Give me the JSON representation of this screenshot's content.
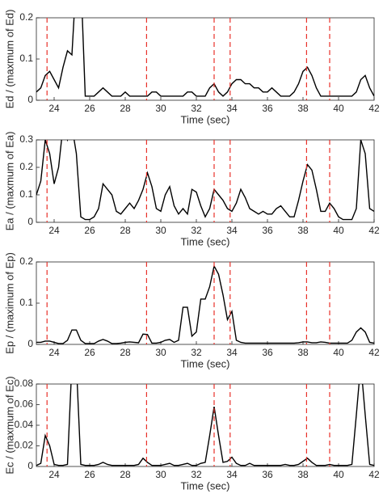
{
  "chart_data": [
    {
      "type": "line",
      "ylabel": "Ed / (maxmum of Ed)",
      "xlabel": "Time (sec)",
      "color": "#000000",
      "vline_color": "#e8312a",
      "xlim": [
        23,
        42
      ],
      "xticks": [
        24,
        26,
        28,
        30,
        32,
        34,
        36,
        38,
        40,
        42
      ],
      "ylim": [
        0,
        0.2
      ],
      "yticks": [
        0,
        0.1,
        0.2
      ],
      "vlines": [
        23.6,
        29.2,
        33.0,
        33.9,
        38.2,
        39.5
      ],
      "x": [
        23,
        23.25,
        23.5,
        23.75,
        24,
        24.25,
        24.5,
        24.75,
        25,
        25.25,
        25.5,
        25.75,
        26,
        26.25,
        26.5,
        26.75,
        27,
        27.25,
        27.5,
        27.75,
        28,
        28.25,
        28.5,
        28.75,
        29,
        29.25,
        29.5,
        29.75,
        30,
        30.25,
        30.5,
        30.75,
        31,
        31.25,
        31.5,
        31.75,
        32,
        32.25,
        32.5,
        32.75,
        33,
        33.25,
        33.5,
        33.75,
        34,
        34.25,
        34.5,
        34.75,
        35,
        35.25,
        35.5,
        35.75,
        36,
        36.25,
        36.5,
        36.75,
        37,
        37.25,
        37.5,
        37.75,
        38,
        38.25,
        38.5,
        38.75,
        39,
        39.25,
        39.5,
        39.75,
        40,
        40.25,
        40.5,
        40.75,
        41,
        41.25,
        41.5,
        41.75,
        42
      ],
      "values": [
        0.02,
        0.03,
        0.06,
        0.07,
        0.05,
        0.03,
        0.08,
        0.12,
        0.11,
        0.3,
        0.3,
        0.01,
        0.01,
        0.01,
        0.02,
        0.03,
        0.02,
        0.01,
        0.01,
        0.01,
        0.02,
        0.01,
        0.01,
        0.01,
        0.01,
        0.01,
        0.02,
        0.02,
        0.01,
        0.01,
        0.01,
        0.01,
        0.01,
        0.01,
        0.02,
        0.02,
        0.01,
        0.01,
        0.01,
        0.03,
        0.04,
        0.02,
        0.01,
        0.02,
        0.04,
        0.05,
        0.05,
        0.04,
        0.04,
        0.03,
        0.03,
        0.02,
        0.02,
        0.03,
        0.02,
        0.01,
        0.01,
        0.01,
        0.02,
        0.04,
        0.07,
        0.08,
        0.06,
        0.03,
        0.01,
        0.01,
        0.01,
        0.01,
        0.01,
        0.01,
        0.01,
        0.01,
        0.02,
        0.05,
        0.06,
        0.03,
        0.01
      ]
    },
    {
      "type": "line",
      "ylabel": "Ea / (maxmum of Ea)",
      "xlabel": "Time (sec)",
      "color": "#000000",
      "vline_color": "#e8312a",
      "xlim": [
        23,
        42
      ],
      "xticks": [
        24,
        26,
        28,
        30,
        32,
        34,
        36,
        38,
        40,
        42
      ],
      "ylim": [
        0,
        0.3
      ],
      "yticks": [
        0,
        0.1,
        0.2,
        0.3
      ],
      "vlines": [
        23.6,
        29.2,
        33.0,
        33.9,
        38.2,
        39.5
      ],
      "x": [
        23,
        23.25,
        23.5,
        23.75,
        24,
        24.25,
        24.5,
        24.75,
        25,
        25.25,
        25.5,
        25.75,
        26,
        26.25,
        26.5,
        26.75,
        27,
        27.25,
        27.5,
        27.75,
        28,
        28.25,
        28.5,
        28.75,
        29,
        29.25,
        29.5,
        29.75,
        30,
        30.25,
        30.5,
        30.75,
        31,
        31.25,
        31.5,
        31.75,
        32,
        32.25,
        32.5,
        32.75,
        33,
        33.25,
        33.5,
        33.75,
        34,
        34.25,
        34.5,
        34.75,
        35,
        35.25,
        35.5,
        35.75,
        36,
        36.25,
        36.5,
        36.75,
        37,
        37.25,
        37.5,
        37.75,
        38,
        38.25,
        38.5,
        38.75,
        39,
        39.25,
        39.5,
        39.75,
        40,
        40.25,
        40.5,
        40.75,
        41,
        41.25,
        41.5,
        41.75,
        42
      ],
      "values": [
        0.1,
        0.15,
        0.3,
        0.25,
        0.14,
        0.2,
        0.35,
        0.3,
        0.35,
        0.25,
        0.02,
        0.01,
        0.01,
        0.02,
        0.05,
        0.14,
        0.12,
        0.1,
        0.04,
        0.03,
        0.05,
        0.07,
        0.05,
        0.08,
        0.12,
        0.18,
        0.13,
        0.05,
        0.04,
        0.1,
        0.13,
        0.06,
        0.03,
        0.05,
        0.03,
        0.12,
        0.11,
        0.06,
        0.02,
        0.05,
        0.12,
        0.1,
        0.08,
        0.05,
        0.04,
        0.07,
        0.12,
        0.09,
        0.05,
        0.04,
        0.03,
        0.04,
        0.03,
        0.03,
        0.05,
        0.06,
        0.04,
        0.02,
        0.02,
        0.08,
        0.15,
        0.21,
        0.19,
        0.12,
        0.04,
        0.04,
        0.07,
        0.05,
        0.02,
        0.01,
        0.01,
        0.01,
        0.05,
        0.3,
        0.25,
        0.05,
        0.04
      ]
    },
    {
      "type": "line",
      "ylabel": "Ep / (maximum of Ep)",
      "xlabel": "Time (sec)",
      "color": "#000000",
      "vline_color": "#e8312a",
      "xlim": [
        23,
        42
      ],
      "xticks": [
        24,
        26,
        28,
        30,
        32,
        34,
        36,
        38,
        40,
        42
      ],
      "ylim": [
        0,
        0.2
      ],
      "yticks": [
        0,
        0.1,
        0.2
      ],
      "vlines": [
        23.6,
        29.2,
        33.0,
        33.9,
        38.2,
        39.5
      ],
      "x": [
        23,
        23.25,
        23.5,
        23.75,
        24,
        24.25,
        24.5,
        24.75,
        25,
        25.25,
        25.5,
        25.75,
        26,
        26.25,
        26.5,
        26.75,
        27,
        27.25,
        27.5,
        27.75,
        28,
        28.25,
        28.5,
        28.75,
        29,
        29.25,
        29.5,
        29.75,
        30,
        30.25,
        30.5,
        30.75,
        31,
        31.25,
        31.5,
        31.75,
        32,
        32.25,
        32.5,
        32.75,
        33,
        33.25,
        33.5,
        33.75,
        34,
        34.25,
        34.5,
        34.75,
        35,
        35.25,
        35.5,
        35.75,
        36,
        36.25,
        36.5,
        36.75,
        37,
        37.25,
        37.5,
        37.75,
        38,
        38.25,
        38.5,
        38.75,
        39,
        39.25,
        39.5,
        39.75,
        40,
        40.25,
        40.5,
        40.75,
        41,
        41.25,
        41.5,
        41.75,
        42
      ],
      "values": [
        0.005,
        0.005,
        0.008,
        0.008,
        0.005,
        0.002,
        0.002,
        0.01,
        0.035,
        0.035,
        0.01,
        0.002,
        0.002,
        0.002,
        0.008,
        0.012,
        0.008,
        0.002,
        0.002,
        0.003,
        0.005,
        0.006,
        0.005,
        0.004,
        0.025,
        0.024,
        0.003,
        0.003,
        0.005,
        0.01,
        0.012,
        0.005,
        0.01,
        0.09,
        0.09,
        0.02,
        0.03,
        0.11,
        0.11,
        0.14,
        0.19,
        0.17,
        0.12,
        0.06,
        0.08,
        0.01,
        0.005,
        0.003,
        0.003,
        0.003,
        0.003,
        0.003,
        0.003,
        0.003,
        0.003,
        0.003,
        0.003,
        0.003,
        0.003,
        0.004,
        0.006,
        0.006,
        0.004,
        0.004,
        0.006,
        0.005,
        0.003,
        0.003,
        0.003,
        0.003,
        0.003,
        0.01,
        0.03,
        0.04,
        0.03,
        0.005,
        0.003
      ]
    },
    {
      "type": "line",
      "ylabel": "Ec / (maxmum of Ec)",
      "xlabel": "Time (sec)",
      "color": "#000000",
      "vline_color": "#e8312a",
      "xlim": [
        23,
        42
      ],
      "xticks": [
        24,
        26,
        28,
        30,
        32,
        34,
        36,
        38,
        40,
        42
      ],
      "ylim": [
        0,
        0.08
      ],
      "yticks": [
        0,
        0.02,
        0.04,
        0.06,
        0.08
      ],
      "vlines": [
        23.6,
        29.2,
        33.0,
        33.9,
        38.2,
        39.5
      ],
      "x": [
        23,
        23.25,
        23.5,
        23.75,
        24,
        24.25,
        24.5,
        24.75,
        25,
        25.25,
        25.5,
        25.75,
        26,
        26.25,
        26.5,
        26.75,
        27,
        27.25,
        27.5,
        27.75,
        28,
        28.25,
        28.5,
        28.75,
        29,
        29.25,
        29.5,
        29.75,
        30,
        30.25,
        30.5,
        30.75,
        31,
        31.25,
        31.5,
        31.75,
        32,
        32.25,
        32.5,
        32.75,
        33,
        33.25,
        33.5,
        33.75,
        34,
        34.25,
        34.5,
        34.75,
        35,
        35.25,
        35.5,
        35.75,
        36,
        36.25,
        36.5,
        36.75,
        37,
        37.25,
        37.5,
        37.75,
        38,
        38.25,
        38.5,
        38.75,
        39,
        39.25,
        39.5,
        39.75,
        40,
        40.25,
        40.5,
        40.75,
        41,
        41.25,
        41.5,
        41.75,
        42
      ],
      "values": [
        0.001,
        0.003,
        0.03,
        0.02,
        0.002,
        0.001,
        0.001,
        0.002,
        0.1,
        0.1,
        0.002,
        0.001,
        0.001,
        0.001,
        0.002,
        0.004,
        0.002,
        0.001,
        0.001,
        0.001,
        0.001,
        0.001,
        0.001,
        0.002,
        0.008,
        0.004,
        0.001,
        0.001,
        0.001,
        0.002,
        0.003,
        0.001,
        0.001,
        0.002,
        0.003,
        0.001,
        0.001,
        0.003,
        0.004,
        0.03,
        0.058,
        0.03,
        0.004,
        0.005,
        0.009,
        0.003,
        0.001,
        0.001,
        0.003,
        0.001,
        0.001,
        0.001,
        0.001,
        0.001,
        0.001,
        0.001,
        0.002,
        0.001,
        0.001,
        0.002,
        0.005,
        0.008,
        0.004,
        0.001,
        0.001,
        0.001,
        0.002,
        0.001,
        0.001,
        0.001,
        0.001,
        0.002,
        0.05,
        0.1,
        0.05,
        0.002,
        0.001
      ]
    }
  ]
}
